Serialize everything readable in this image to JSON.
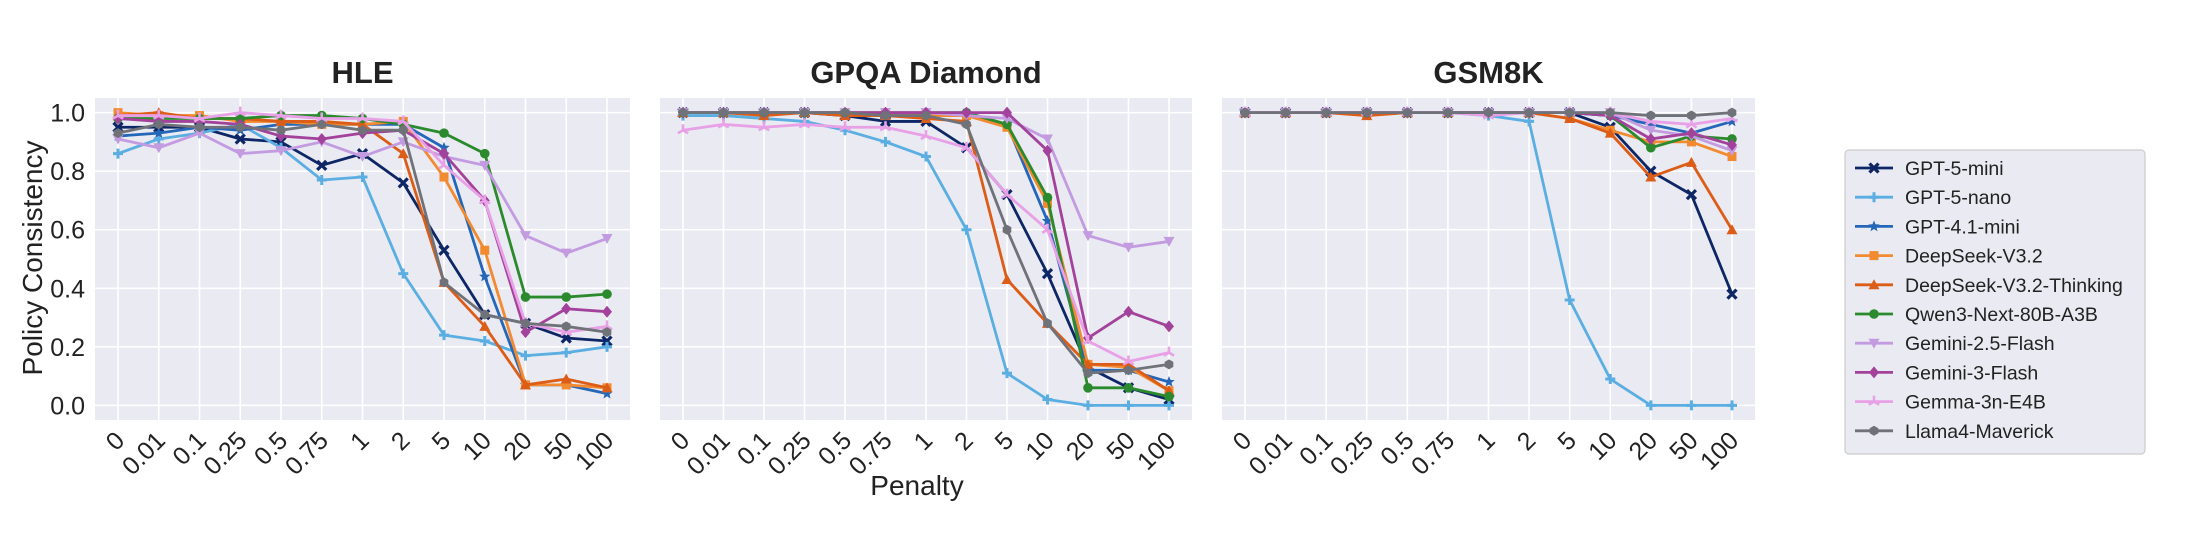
{
  "chart_data": {
    "type": "line",
    "xlabel": "Penalty",
    "ylabel": "Policy Consistency",
    "x": [
      "0",
      "0.01",
      "0.1",
      "0.25",
      "0.5",
      "0.75",
      "1",
      "2",
      "5",
      "10",
      "20",
      "50",
      "100"
    ],
    "ylim": [
      -0.05,
      1.05
    ],
    "yticks": [
      "0.0",
      "0.2",
      "0.4",
      "0.6",
      "0.8",
      "1.0"
    ],
    "grid": true,
    "legend": "right",
    "series_styles": [
      {
        "name": "GPT-5-mini",
        "color": "#0d2666",
        "marker": "x"
      },
      {
        "name": "GPT-5-nano",
        "color": "#5aaee1",
        "marker": "plus"
      },
      {
        "name": "GPT-4.1-mini",
        "color": "#2467b8",
        "marker": "star"
      },
      {
        "name": "DeepSeek-V3.2",
        "color": "#f28a30",
        "marker": "square"
      },
      {
        "name": "DeepSeek-V3.2-Thinking",
        "color": "#dc5d17",
        "marker": "triangle"
      },
      {
        "name": "Qwen3-Next-80B-A3B",
        "color": "#2b8a2d",
        "marker": "circle"
      },
      {
        "name": "Gemini-2.5-Flash",
        "color": "#c39be0",
        "marker": "triangle-down"
      },
      {
        "name": "Gemini-3-Flash",
        "color": "#a2429a",
        "marker": "diamond"
      },
      {
        "name": "Gemma-3n-E4B",
        "color": "#e8a0e6",
        "marker": "tri"
      },
      {
        "name": "Llama4-Maverick",
        "color": "#6f7278",
        "marker": "hexagon"
      }
    ],
    "panels": [
      {
        "title": "HLE",
        "series": [
          {
            "name": "GPT-5-mini",
            "values": [
              0.95,
              0.95,
              0.95,
              0.91,
              0.9,
              0.82,
              0.86,
              0.76,
              0.53,
              0.31,
              0.28,
              0.23,
              0.22
            ]
          },
          {
            "name": "GPT-5-nano",
            "values": [
              0.86,
              0.91,
              0.93,
              0.96,
              0.88,
              0.77,
              0.78,
              0.45,
              0.24,
              0.22,
              0.17,
              0.18,
              0.2
            ]
          },
          {
            "name": "GPT-4.1-mini",
            "values": [
              0.92,
              0.93,
              0.95,
              0.94,
              0.96,
              0.96,
              0.96,
              0.96,
              0.88,
              0.44,
              0.07,
              0.07,
              0.04
            ]
          },
          {
            "name": "DeepSeek-V3.2",
            "values": [
              1.0,
              0.99,
              0.99,
              0.97,
              0.97,
              0.96,
              0.96,
              0.97,
              0.78,
              0.53,
              0.07,
              0.07,
              0.06
            ]
          },
          {
            "name": "DeepSeek-V3.2-Thinking",
            "values": [
              0.99,
              1.0,
              0.98,
              0.98,
              0.97,
              0.97,
              0.96,
              0.86,
              0.42,
              0.27,
              0.07,
              0.09,
              0.06
            ]
          },
          {
            "name": "Qwen3-Next-80B-A3B",
            "values": [
              0.98,
              0.98,
              0.98,
              0.98,
              0.99,
              0.99,
              0.98,
              0.96,
              0.93,
              0.86,
              0.37,
              0.37,
              0.38
            ]
          },
          {
            "name": "Gemini-2.5-Flash",
            "values": [
              0.91,
              0.88,
              0.93,
              0.86,
              0.87,
              0.9,
              0.85,
              0.9,
              0.85,
              0.82,
              0.58,
              0.52,
              0.57
            ]
          },
          {
            "name": "Gemini-3-Flash",
            "values": [
              0.98,
              0.97,
              0.97,
              0.96,
              0.92,
              0.91,
              0.93,
              0.94,
              0.86,
              0.7,
              0.25,
              0.33,
              0.32
            ]
          },
          {
            "name": "Gemma-3n-E4B",
            "values": [
              0.99,
              0.99,
              0.98,
              1.0,
              0.99,
              0.98,
              0.98,
              0.97,
              0.82,
              0.7,
              0.28,
              0.25,
              0.27
            ]
          },
          {
            "name": "Llama4-Maverick",
            "values": [
              0.93,
              0.96,
              0.95,
              0.95,
              0.94,
              0.96,
              0.94,
              0.94,
              0.42,
              0.31,
              0.28,
              0.27,
              0.25
            ]
          }
        ]
      },
      {
        "title": "GPQA Diamond",
        "series": [
          {
            "name": "GPT-5-mini",
            "values": [
              1.0,
              1.0,
              1.0,
              1.0,
              0.99,
              0.97,
              0.97,
              0.88,
              0.72,
              0.45,
              0.13,
              0.06,
              0.02
            ]
          },
          {
            "name": "GPT-5-nano",
            "values": [
              0.99,
              0.99,
              0.98,
              0.97,
              0.94,
              0.9,
              0.85,
              0.6,
              0.11,
              0.02,
              0.0,
              0.0,
              0.0
            ]
          },
          {
            "name": "GPT-4.1-mini",
            "values": [
              1.0,
              1.0,
              1.0,
              1.0,
              1.0,
              0.99,
              0.99,
              0.99,
              0.96,
              0.63,
              0.12,
              0.12,
              0.08
            ]
          },
          {
            "name": "DeepSeek-V3.2",
            "values": [
              1.0,
              1.0,
              1.0,
              1.0,
              1.0,
              1.0,
              0.99,
              0.99,
              0.95,
              0.69,
              0.14,
              0.13,
              0.05
            ]
          },
          {
            "name": "DeepSeek-V3.2-Thinking",
            "values": [
              1.0,
              1.0,
              0.99,
              1.0,
              0.99,
              0.99,
              0.98,
              0.97,
              0.43,
              0.28,
              0.14,
              0.14,
              0.05
            ]
          },
          {
            "name": "Qwen3-Next-80B-A3B",
            "values": [
              1.0,
              1.0,
              1.0,
              1.0,
              1.0,
              1.0,
              1.0,
              1.0,
              0.96,
              0.71,
              0.06,
              0.06,
              0.03
            ]
          },
          {
            "name": "Gemini-2.5-Flash",
            "values": [
              1.0,
              1.0,
              1.0,
              1.0,
              1.0,
              1.0,
              1.0,
              0.99,
              0.98,
              0.91,
              0.58,
              0.54,
              0.56
            ]
          },
          {
            "name": "Gemini-3-Flash",
            "values": [
              1.0,
              1.0,
              1.0,
              1.0,
              1.0,
              1.0,
              1.0,
              1.0,
              1.0,
              0.87,
              0.23,
              0.32,
              0.27
            ]
          },
          {
            "name": "Gemma-3n-E4B",
            "values": [
              0.94,
              0.96,
              0.95,
              0.96,
              0.95,
              0.95,
              0.92,
              0.88,
              0.72,
              0.6,
              0.22,
              0.15,
              0.18
            ]
          },
          {
            "name": "Llama4-Maverick",
            "values": [
              1.0,
              1.0,
              1.0,
              1.0,
              1.0,
              0.99,
              0.99,
              0.96,
              0.6,
              0.28,
              0.11,
              0.12,
              0.14
            ]
          }
        ]
      },
      {
        "title": "GSM8K",
        "series": [
          {
            "name": "GPT-5-mini",
            "values": [
              1.0,
              1.0,
              1.0,
              1.0,
              1.0,
              1.0,
              1.0,
              1.0,
              1.0,
              0.95,
              0.8,
              0.72,
              0.38
            ]
          },
          {
            "name": "GPT-5-nano",
            "values": [
              1.0,
              1.0,
              1.0,
              1.0,
              1.0,
              1.0,
              0.99,
              0.97,
              0.36,
              0.09,
              0.0,
              0.0,
              0.0
            ]
          },
          {
            "name": "GPT-4.1-mini",
            "values": [
              1.0,
              1.0,
              1.0,
              1.0,
              1.0,
              1.0,
              1.0,
              1.0,
              1.0,
              0.99,
              0.96,
              0.93,
              0.97
            ]
          },
          {
            "name": "DeepSeek-V3.2",
            "values": [
              1.0,
              1.0,
              1.0,
              1.0,
              1.0,
              1.0,
              1.0,
              1.0,
              0.98,
              0.94,
              0.9,
              0.9,
              0.85
            ]
          },
          {
            "name": "DeepSeek-V3.2-Thinking",
            "values": [
              1.0,
              1.0,
              1.0,
              0.99,
              1.0,
              1.0,
              1.0,
              1.0,
              0.98,
              0.93,
              0.78,
              0.83,
              0.6
            ]
          },
          {
            "name": "Qwen3-Next-80B-A3B",
            "values": [
              1.0,
              1.0,
              1.0,
              1.0,
              1.0,
              1.0,
              1.0,
              1.0,
              1.0,
              0.99,
              0.88,
              0.92,
              0.91
            ]
          },
          {
            "name": "Gemini-2.5-Flash",
            "values": [
              1.0,
              1.0,
              1.0,
              1.0,
              1.0,
              1.0,
              1.0,
              1.0,
              1.0,
              1.0,
              0.94,
              0.92,
              0.87
            ]
          },
          {
            "name": "Gemini-3-Flash",
            "values": [
              1.0,
              1.0,
              1.0,
              1.0,
              1.0,
              1.0,
              1.0,
              1.0,
              1.0,
              0.99,
              0.91,
              0.93,
              0.89
            ]
          },
          {
            "name": "Gemma-3n-E4B",
            "values": [
              1.0,
              1.0,
              1.0,
              1.0,
              1.0,
              1.0,
              0.99,
              1.0,
              1.0,
              1.0,
              0.97,
              0.96,
              0.98
            ]
          },
          {
            "name": "Llama4-Maverick",
            "values": [
              1.0,
              1.0,
              1.0,
              1.0,
              1.0,
              1.0,
              1.0,
              1.0,
              1.0,
              1.0,
              0.99,
              0.99,
              1.0
            ]
          }
        ]
      }
    ]
  }
}
